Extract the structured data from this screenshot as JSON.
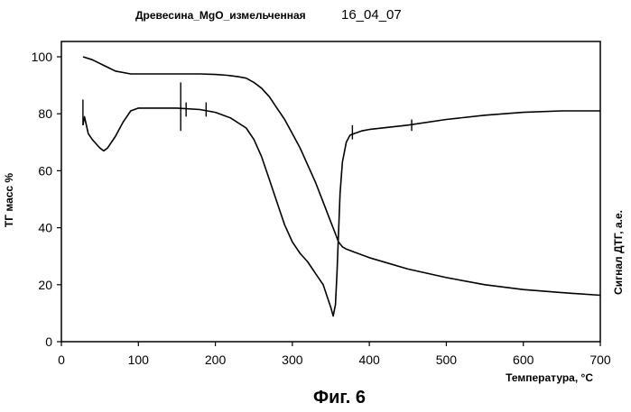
{
  "chart_data": {
    "type": "line",
    "title": "Древесина_MgO_измельченная",
    "title_suffix": "16_04_07",
    "xlabel": "Температура, °C",
    "ylabel_left": "ТГ масс %",
    "ylabel_right": "Сигнал ДТГ, а.е.",
    "xlim": [
      0,
      700
    ],
    "ylim": [
      0,
      105
    ],
    "x_ticks": [
      "0",
      "100",
      "200",
      "300",
      "400",
      "500",
      "600",
      "700"
    ],
    "y_ticks": [
      "0",
      "20",
      "40",
      "60",
      "80",
      "100"
    ],
    "grid": false,
    "legend": false,
    "series": [
      {
        "key": "tg",
        "color": "#000000",
        "x": [
          28,
          40,
          55,
          70,
          90,
          120,
          150,
          180,
          200,
          215,
          230,
          240,
          250,
          260,
          270,
          280,
          290,
          300,
          310,
          320,
          330,
          340,
          350,
          355,
          360,
          365,
          370,
          380,
          400,
          450,
          500,
          550,
          600,
          650,
          700
        ],
        "y": [
          100,
          99,
          97,
          95,
          94,
          94,
          94,
          94,
          93.8,
          93.5,
          93,
          92.5,
          91,
          89,
          86,
          82,
          78,
          73,
          68,
          62,
          56,
          49,
          42,
          38.5,
          35,
          33.3,
          32.5,
          31.5,
          29.5,
          25.5,
          22.5,
          20,
          18.3,
          17.2,
          16.3
        ]
      },
      {
        "key": "dtg",
        "color": "#000000",
        "x": [
          28,
          30,
          35,
          40,
          50,
          55,
          60,
          70,
          80,
          90,
          100,
          120,
          150,
          180,
          200,
          220,
          240,
          250,
          260,
          270,
          280,
          290,
          300,
          310,
          320,
          330,
          340,
          345,
          350,
          353,
          356,
          358,
          360,
          362,
          365,
          370,
          375,
          380,
          385,
          390,
          400,
          450,
          500,
          550,
          600,
          650,
          700
        ],
        "y": [
          76,
          79,
          73,
          71,
          68,
          67,
          68,
          72,
          77,
          81,
          82,
          82,
          82,
          81.5,
          80.5,
          78.5,
          75,
          71,
          65,
          57,
          49,
          41,
          35,
          31,
          28,
          24,
          20,
          16,
          12,
          9,
          13,
          24,
          38,
          52,
          63,
          70,
          72.5,
          73,
          73.5,
          74,
          74.5,
          76,
          78,
          79.5,
          80.5,
          81,
          81
        ]
      }
    ],
    "spikes": [
      {
        "x": 28,
        "y_from": 76,
        "y_to": 85
      },
      {
        "x": 155,
        "y_from": 74,
        "y_to": 91
      },
      {
        "x": 162,
        "y_from": 79,
        "y_to": 84
      },
      {
        "x": 188,
        "y_from": 79,
        "y_to": 84
      },
      {
        "x": 378,
        "y_from": 71,
        "y_to": 76
      },
      {
        "x": 455,
        "y_from": 74,
        "y_to": 78
      }
    ]
  },
  "caption": "Фиг. 6"
}
